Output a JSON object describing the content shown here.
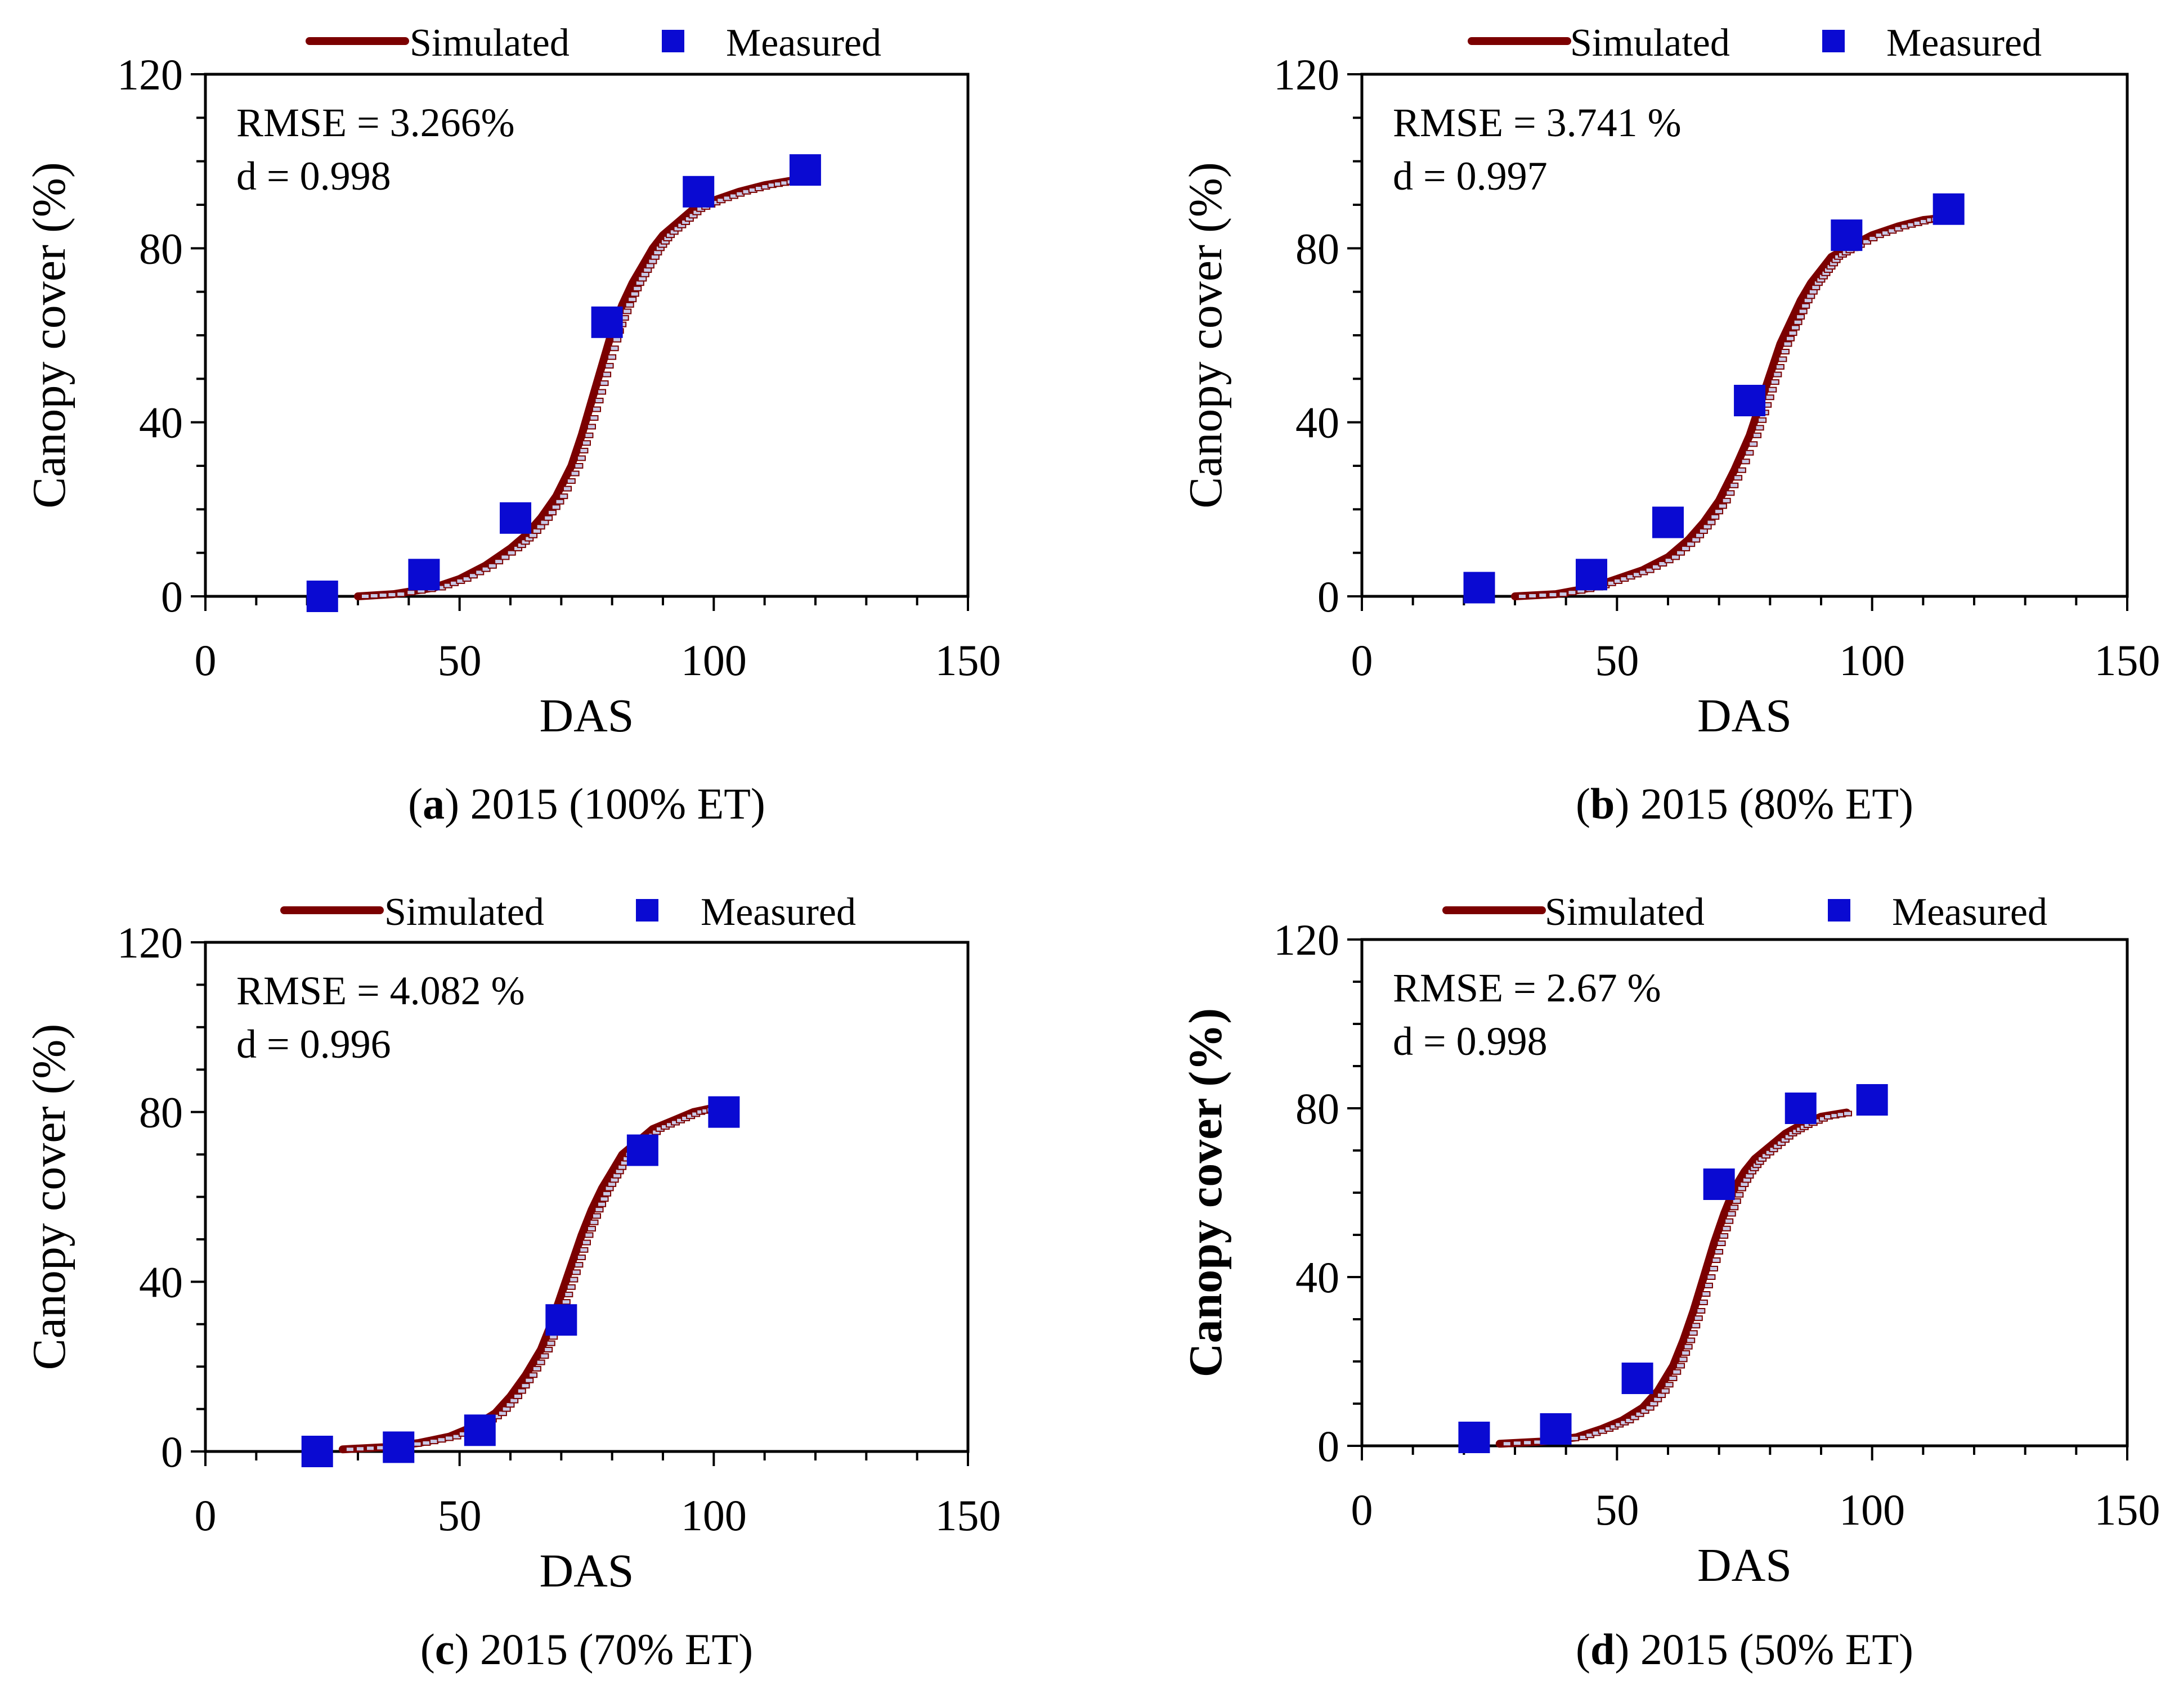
{
  "figure_title": "Canopy cover simulated vs measured, 2015",
  "colors": {
    "simulated": "#7b0000",
    "measured": "#0a0ad2",
    "frame": "#000000"
  },
  "chart_data": [
    {
      "id": "a",
      "type": "line+scatter",
      "caption_letter": "a",
      "caption_text": " 2015 (100% ET)",
      "xlabel": "DAS",
      "ylabel": "Canopy cover (%)",
      "ylabel_bold": false,
      "xlim": [
        0,
        150
      ],
      "ylim": [
        0,
        120
      ],
      "xticks": [
        "0",
        "50",
        "100",
        "150"
      ],
      "yticks": [
        "0",
        "40",
        "80",
        "120"
      ],
      "legend": {
        "simulated": "Simulated",
        "measured": "Measured"
      },
      "stats": [
        "RMSE = 3.266%",
        "d = 0.998"
      ],
      "simulated": {
        "x": [
          30,
          37,
          45,
          50,
          55,
          60,
          63,
          66,
          69,
          72,
          74,
          76,
          78,
          80,
          82,
          84,
          86,
          88,
          90,
          93,
          96,
          100,
          105,
          110,
          115,
          118
        ],
        "y": [
          0,
          0.5,
          2,
          4,
          7,
          11,
          14,
          18,
          23,
          30,
          37,
          45,
          53,
          61,
          67,
          72,
          76,
          80,
          83,
          86,
          89,
          91,
          93,
          94.5,
          95.5,
          96
        ]
      },
      "measured": {
        "x": [
          23,
          43,
          61,
          79,
          97,
          118
        ],
        "y": [
          0,
          5,
          18,
          63,
          93,
          98
        ]
      }
    },
    {
      "id": "b",
      "type": "line+scatter",
      "caption_letter": "b",
      "caption_text": " 2015 (80% ET)",
      "xlabel": "DAS",
      "ylabel": "Canopy cover (%)",
      "ylabel_bold": false,
      "xlim": [
        0,
        150
      ],
      "ylim": [
        0,
        120
      ],
      "xticks": [
        "0",
        "50",
        "100",
        "150"
      ],
      "yticks": [
        "0",
        "40",
        "80",
        "120"
      ],
      "legend": {
        "simulated": "Simulated",
        "measured": "Measured"
      },
      "stats": [
        "RMSE = 3.741 %",
        "d = 0.997"
      ],
      "simulated": {
        "x": [
          30,
          38,
          45,
          50,
          55,
          60,
          64,
          67,
          70,
          73,
          76,
          78,
          80,
          82,
          84,
          86,
          88,
          90,
          92,
          95,
          100,
          105,
          110,
          114
        ],
        "y": [
          0,
          0.5,
          2,
          4,
          6,
          9,
          13,
          17,
          22,
          29,
          37,
          44,
          51,
          58,
          63,
          68,
          72,
          75,
          78,
          80,
          83,
          85,
          86.5,
          87
        ]
      },
      "measured": {
        "x": [
          23,
          45,
          60,
          76,
          95,
          115
        ],
        "y": [
          2,
          5,
          17,
          45,
          83,
          89
        ]
      }
    },
    {
      "id": "c",
      "type": "line+scatter",
      "caption_letter": "c",
      "caption_text": " 2015 (70% ET)",
      "xlabel": "DAS",
      "ylabel": "Canopy cover (%)",
      "ylabel_bold": false,
      "xlim": [
        0,
        150
      ],
      "ylim": [
        0,
        120
      ],
      "xticks": [
        "0",
        "50",
        "100",
        "150"
      ],
      "yticks": [
        "0",
        "40",
        "80",
        "120"
      ],
      "legend": {
        "simulated": "Simulated",
        "measured": "Measured"
      },
      "stats": [
        "RMSE = 4.082 %",
        "d = 0.996"
      ],
      "simulated": {
        "x": [
          27,
          35,
          42,
          48,
          53,
          57,
          60,
          63,
          66,
          68,
          70,
          72,
          74,
          76,
          78,
          80,
          82,
          85,
          88,
          92,
          96,
          100
        ],
        "y": [
          0.5,
          1,
          2,
          3.5,
          6,
          9,
          13,
          18,
          24,
          30,
          37,
          44,
          51,
          57,
          62,
          66,
          70,
          73,
          76,
          78,
          80,
          81
        ]
      },
      "measured": {
        "x": [
          22,
          38,
          54,
          70,
          86,
          102
        ],
        "y": [
          0,
          1,
          5,
          31,
          71,
          80
        ]
      }
    },
    {
      "id": "d",
      "type": "line+scatter",
      "caption_letter": "d",
      "caption_text": " 2015 (50% ET)",
      "xlabel": "DAS",
      "ylabel": "Canopy cover (%)",
      "ylabel_bold": true,
      "xlim": [
        0,
        150
      ],
      "ylim": [
        0,
        120
      ],
      "xticks": [
        "0",
        "50",
        "100",
        "150"
      ],
      "yticks": [
        "0",
        "40",
        "80",
        "120"
      ],
      "legend": {
        "simulated": "Simulated",
        "measured": "Measured"
      },
      "stats": [
        "RMSE = 2.67 %",
        "d = 0.998"
      ],
      "simulated": {
        "x": [
          27,
          35,
          42,
          47,
          51,
          55,
          58,
          61,
          63,
          65,
          67,
          69,
          71,
          73,
          75,
          77,
          80,
          83,
          86,
          90,
          95
        ],
        "y": [
          0.5,
          1,
          2,
          4,
          6,
          9,
          13,
          19,
          25,
          32,
          40,
          48,
          55,
          61,
          65,
          68,
          71,
          74,
          76,
          78,
          79
        ]
      },
      "measured": {
        "x": [
          22,
          38,
          54,
          70,
          86,
          100
        ],
        "y": [
          2,
          4,
          16,
          62,
          80,
          82
        ]
      }
    }
  ]
}
